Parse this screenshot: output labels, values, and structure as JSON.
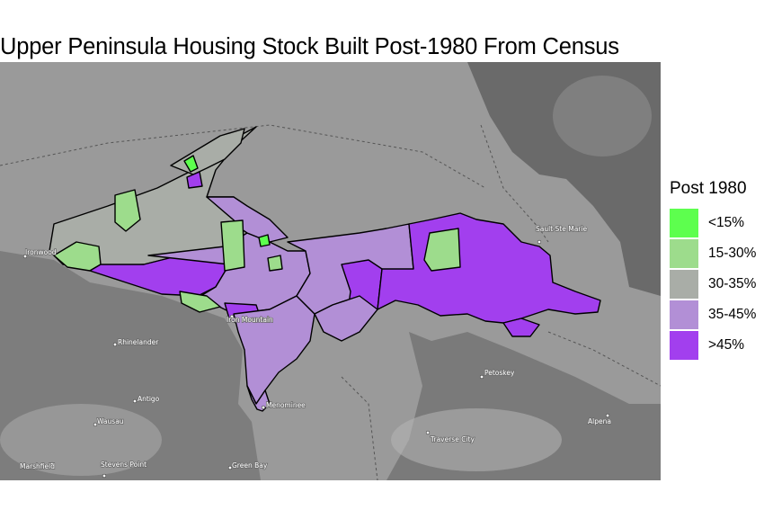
{
  "title": "Upper Peninsula Housing Stock Built Post-1980 From Census",
  "legend": {
    "title": "Post 1980",
    "items": [
      {
        "label": "<15%",
        "color": "#5dff4e"
      },
      {
        "label": "15-30%",
        "color": "#9ddc8c"
      },
      {
        "label": "30-35%",
        "color": "#a9ada7"
      },
      {
        "label": "35-45%",
        "color": "#b28fd6"
      },
      {
        "label": ">45%",
        "color": "#a23fee"
      }
    ]
  },
  "cities": [
    "Ironwood",
    "Rhinelander",
    "Antigo",
    "Wausau",
    "Marshfield",
    "Stevens Point",
    "Green Bay",
    "Menominee",
    "Iron Mountain",
    "Petoskey",
    "Traverse City",
    "Alpena",
    "Sault Ste Marie"
  ],
  "fills": {
    "lake": "#9a9a9a",
    "land_dark": "#6e6e6e",
    "land_light": "#bdbdbd",
    "outline": "#000000"
  }
}
